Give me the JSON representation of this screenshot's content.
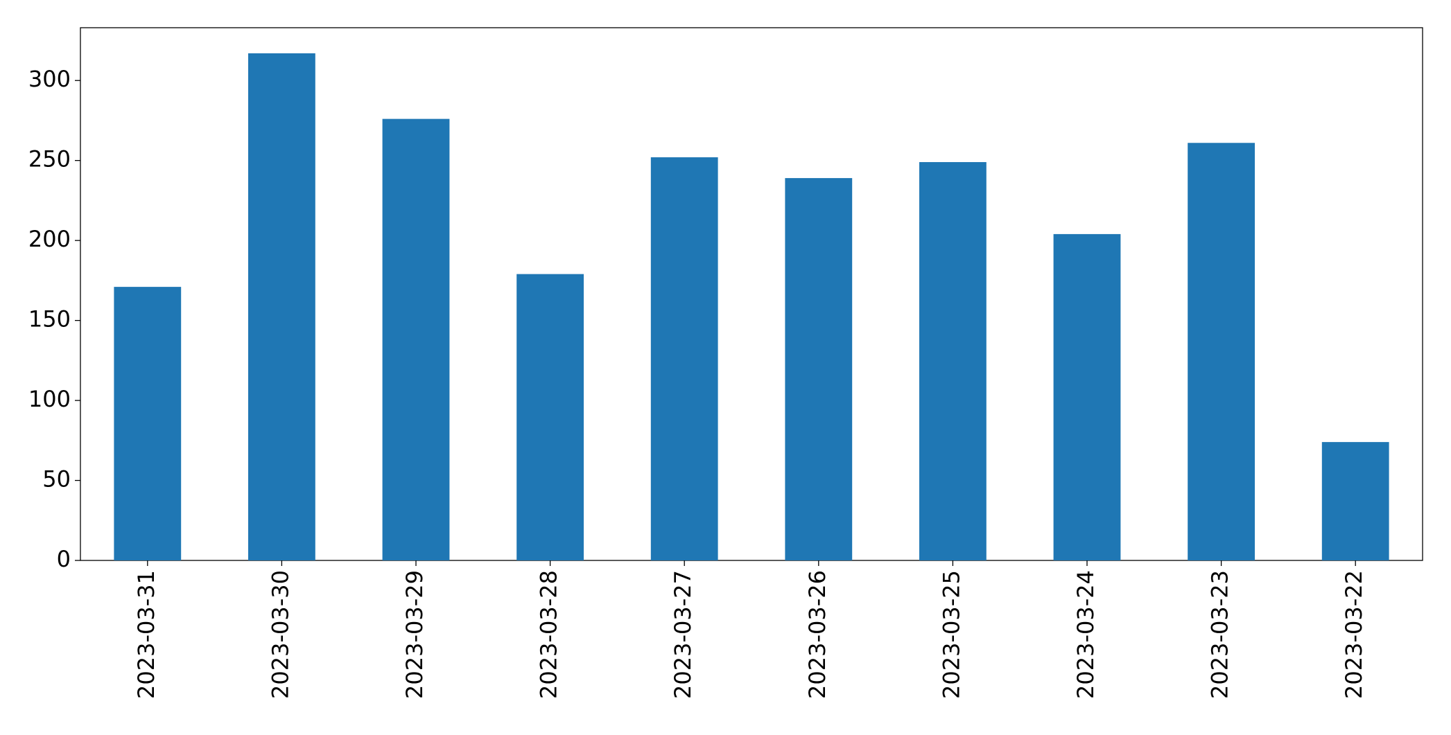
{
  "chart_data": {
    "type": "bar",
    "categories": [
      "2023-03-31",
      "2023-03-30",
      "2023-03-29",
      "2023-03-28",
      "2023-03-27",
      "2023-03-26",
      "2023-03-25",
      "2023-03-24",
      "2023-03-23",
      "2023-03-22"
    ],
    "values": [
      171,
      317,
      276,
      179,
      252,
      239,
      249,
      204,
      261,
      74
    ],
    "color": "#1f77b4",
    "ylim": [
      0,
      333
    ],
    "yticks": [
      0,
      50,
      100,
      150,
      200,
      250,
      300
    ],
    "grid": false
  }
}
